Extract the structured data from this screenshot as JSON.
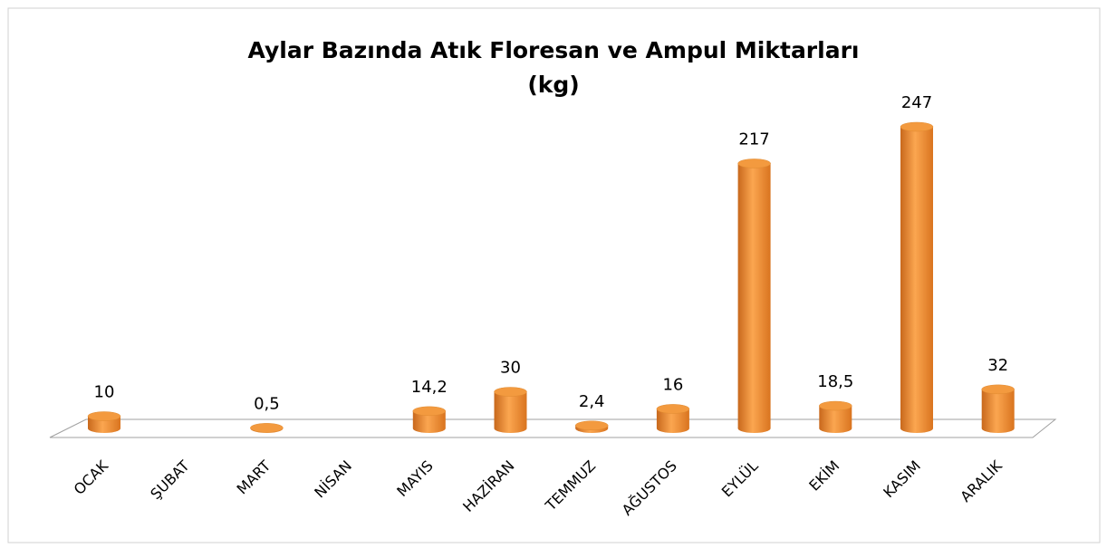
{
  "chart_data": {
    "type": "bar",
    "title": "Aylar Bazında Atık Floresan ve Ampul Miktarları",
    "subtitle": "(kg)",
    "categories": [
      "OCAK",
      "ŞUBAT",
      "MART",
      "NİSAN",
      "MAYIS",
      "HAZİRAN",
      "TEMMUZ",
      "AĞUSTOS",
      "EYLÜL",
      "EKİM",
      "KASIM",
      "ARALIK"
    ],
    "values": [
      10,
      null,
      0.5,
      null,
      14.2,
      30,
      2.4,
      16,
      217,
      18.5,
      247,
      32
    ],
    "value_labels": [
      "10",
      null,
      "0,5",
      null,
      "14,2",
      "30",
      "2,4",
      "16",
      "217",
      "18,5",
      "247",
      "32"
    ],
    "color": "#f39a3f"
  }
}
